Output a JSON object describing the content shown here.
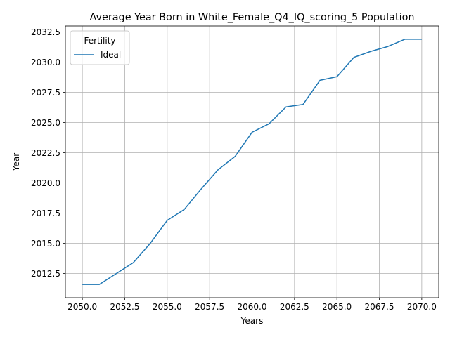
{
  "chart_data": {
    "type": "line",
    "title": "Average Year Born in White_Female_Q4_IQ_scoring_5 Population",
    "xlabel": "Years",
    "ylabel": "Year",
    "xlim": [
      2049.0,
      2071.0
    ],
    "ylim": [
      2010.5,
      2033.0
    ],
    "x_ticks": [
      2050.0,
      2052.5,
      2055.0,
      2057.5,
      2060.0,
      2062.5,
      2065.0,
      2067.5,
      2070.0
    ],
    "x_tick_labels": [
      "2050.0",
      "2052.5",
      "2055.0",
      "2057.5",
      "2060.0",
      "2062.5",
      "2065.0",
      "2067.5",
      "2070.0"
    ],
    "y_ticks": [
      2012.5,
      2015.0,
      2017.5,
      2020.0,
      2022.5,
      2025.0,
      2027.5,
      2030.0,
      2032.5
    ],
    "y_tick_labels": [
      "2012.5",
      "2015.0",
      "2017.5",
      "2020.0",
      "2022.5",
      "2025.0",
      "2027.5",
      "2030.0",
      "2032.5"
    ],
    "grid": true,
    "legend": {
      "title": "Fertility",
      "placement": "top-left"
    },
    "series": [
      {
        "name": "Ideal",
        "color": "#1f77b4",
        "x": [
          2050,
          2051,
          2052,
          2053,
          2054,
          2055,
          2056,
          2057,
          2058,
          2059,
          2060,
          2061,
          2062,
          2063,
          2064,
          2065,
          2066,
          2067,
          2068,
          2069,
          2070
        ],
        "y": [
          2011.6,
          2011.6,
          2012.5,
          2013.4,
          2015.0,
          2016.9,
          2017.8,
          2019.5,
          2021.1,
          2022.2,
          2024.2,
          2024.9,
          2026.3,
          2026.5,
          2028.5,
          2028.8,
          2030.4,
          2030.9,
          2031.3,
          2031.9,
          2031.9
        ]
      }
    ]
  }
}
